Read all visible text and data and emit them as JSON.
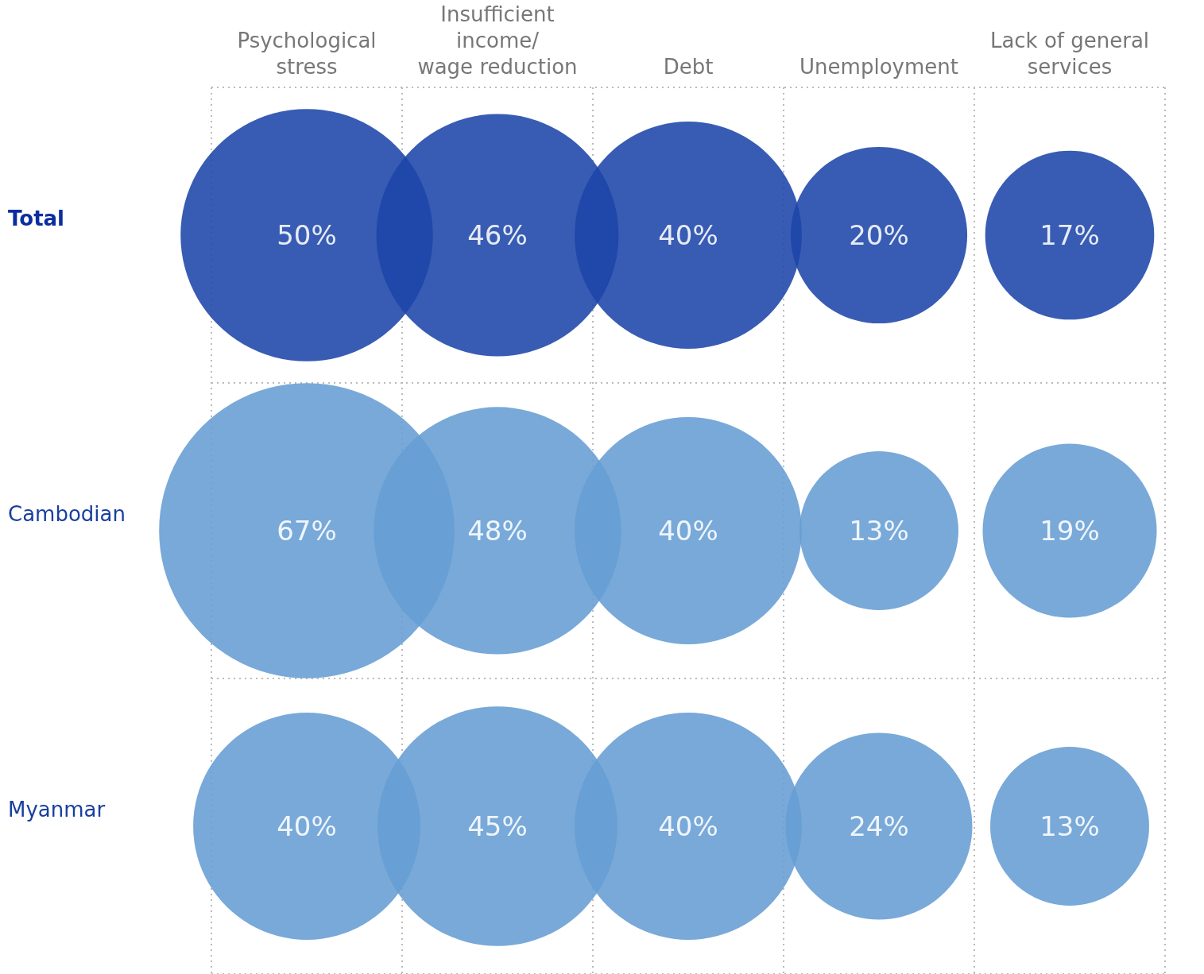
{
  "chart_data": {
    "type": "other",
    "categories": [
      "Psychological\nstress",
      "Insufficient\nincome/\nwage reduction",
      "Debt",
      "Unemployment",
      "Lack of general\nservices"
    ],
    "y_categories": [
      "Total",
      "Cambodian",
      "Myanmar"
    ],
    "series": [
      {
        "color": "#1c46a8",
        "values": [
          50,
          46,
          40,
          20,
          17
        ],
        "value_labels": [
          "50%",
          "46%",
          "40%",
          "20%",
          "17%"
        ]
      },
      {
        "color": "#659dd3",
        "values": [
          67,
          48,
          40,
          13,
          19
        ],
        "value_labels": [
          "67%",
          "48%",
          "40%",
          "13%",
          "19%"
        ]
      },
      {
        "color": "#659dd3",
        "values": [
          40,
          45,
          40,
          24,
          13
        ],
        "value_labels": [
          "40%",
          "45%",
          "40%",
          "24%",
          "13%"
        ]
      }
    ]
  }
}
